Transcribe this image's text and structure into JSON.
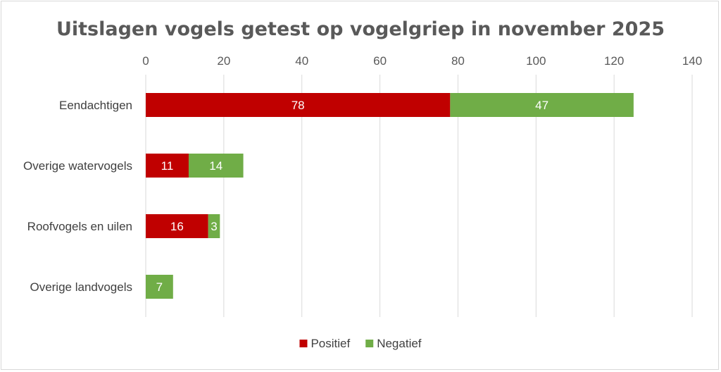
{
  "chart_data": {
    "type": "bar",
    "orientation": "horizontal",
    "stacked": true,
    "title": "Uitslagen vogels getest op vogelgriep in november 2025",
    "categories": [
      "Eendachtigen",
      "Overige watervogels",
      "Roofvogels en uilen",
      "Overige landvogels"
    ],
    "series": [
      {
        "name": "Positief",
        "color": "#c00000",
        "values": [
          78,
          11,
          16,
          0
        ]
      },
      {
        "name": "Negatief",
        "color": "#70ad47",
        "values": [
          47,
          14,
          3,
          7
        ]
      }
    ],
    "xlim": [
      0,
      140
    ],
    "xticks": [
      0,
      20,
      40,
      60,
      80,
      100,
      120,
      140
    ],
    "axis_position": "top",
    "grid": true,
    "legend_position": "bottom",
    "xlabel": "",
    "ylabel": ""
  }
}
